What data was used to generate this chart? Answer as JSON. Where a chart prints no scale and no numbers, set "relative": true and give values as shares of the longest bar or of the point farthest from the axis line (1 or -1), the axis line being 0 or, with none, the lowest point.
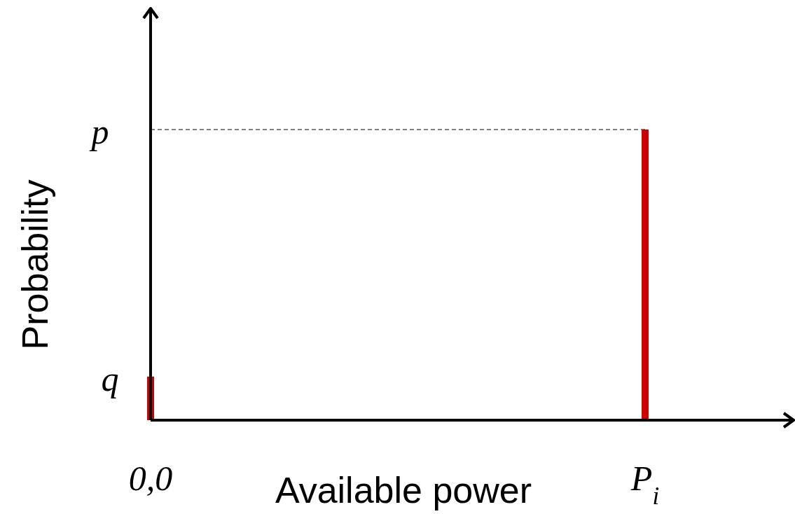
{
  "chart_data": {
    "type": "bar",
    "relative": true,
    "xlabel": "Available power",
    "ylabel": "Probability",
    "categories": [
      "0,0",
      "P$_{i}$"
    ],
    "values": [
      0.15,
      1
    ],
    "color": "#cc0000",
    "ref_lines": [
      {
        "axis": "y",
        "value": 1,
        "label": "p",
        "line_style": "dashed",
        "color": "#000000"
      }
    ],
    "annotations": [
      {
        "text": "q",
        "x": "0,0",
        "y": 0.15
      }
    ]
  }
}
